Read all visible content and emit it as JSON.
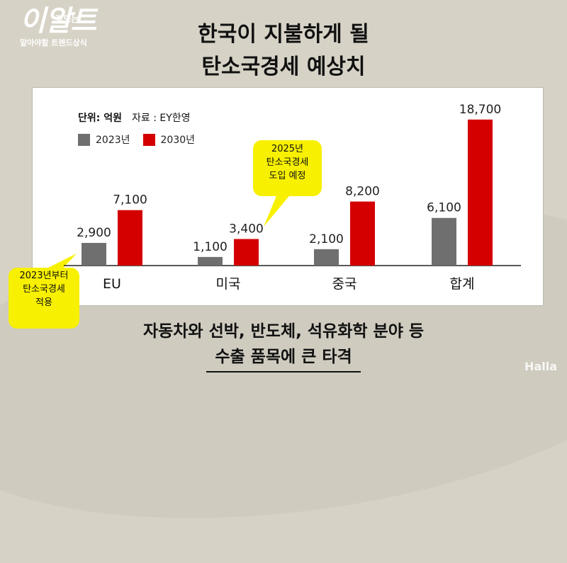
{
  "logo": {
    "big": "이알트",
    "small": "정도는",
    "sub": "알아야할 트렌드상식"
  },
  "title": {
    "line1": "한국이 지불하게 될",
    "line2": "탄소국경세 예상치"
  },
  "units": {
    "unit": "단위: 억원",
    "source": "자료 : EY한영"
  },
  "colors": {
    "s2023": "#6f6f6f",
    "s2030": "#d40000",
    "callout": "#f7f000"
  },
  "callouts": {
    "c2025": [
      "2025년",
      "탄소국경세",
      "도입 예정"
    ],
    "c2023": [
      "2023년부터",
      "탄소국경세",
      "적용"
    ]
  },
  "bottom": {
    "line1": "자동차와 선박, 반도체, 석유화학 분야 등",
    "line2": "수출 품목에 큰 타격"
  },
  "brand": "Halla",
  "chart_data": {
    "type": "bar",
    "categories": [
      "EU",
      "미국",
      "중국",
      "합계"
    ],
    "series": [
      {
        "name": "2023년",
        "values": [
          2900,
          1100,
          2100,
          6100
        ],
        "labels": [
          "2,900",
          "1,100",
          "2,100",
          "6,100"
        ]
      },
      {
        "name": "2030년",
        "values": [
          7100,
          3400,
          8200,
          18700
        ],
        "labels": [
          "7,100",
          "3,400",
          "8,200",
          "18,700"
        ]
      }
    ],
    "ylim": [
      0,
      19500
    ],
    "grid": false,
    "legend": "top-left"
  }
}
